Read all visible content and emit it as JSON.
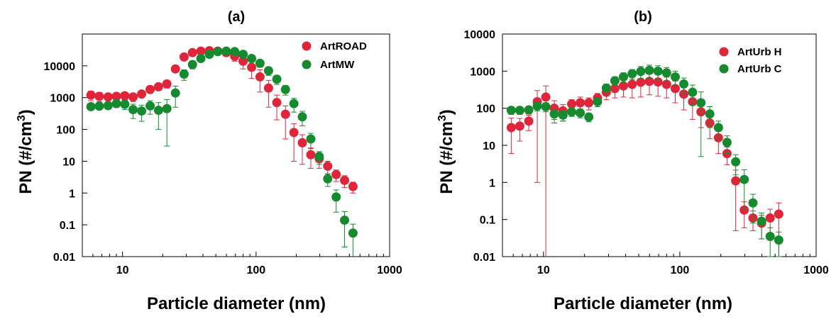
{
  "chart_data": [
    {
      "type": "scatter",
      "title": "(a)",
      "xlabel": "Particle diameter (nm)",
      "ylabel_main": "PN (#/cm",
      "ylabel_sup": "3",
      "ylabel_end": ")",
      "xscale": "log",
      "yscale": "log",
      "xlim": [
        5,
        1000
      ],
      "ylim": [
        0.01,
        100000
      ],
      "xticks": [
        10,
        100,
        1000
      ],
      "xtick_labels": [
        "10",
        "100",
        "1000"
      ],
      "yticks": [
        0.01,
        0.1,
        1,
        10,
        100,
        1000,
        10000
      ],
      "ytick_labels": [
        "0.01",
        "0.1",
        "1",
        "10",
        "100",
        "1000",
        "10000"
      ],
      "grid": false,
      "legend_position": "top-right",
      "series": [
        {
          "name": "ArtROAD",
          "color": "#e0253a",
          "points": [
            {
              "x": 5.8,
              "y": 1200,
              "err": 400
            },
            {
              "x": 6.7,
              "y": 1100,
              "err": 350
            },
            {
              "x": 7.8,
              "y": 1050,
              "err": 300
            },
            {
              "x": 9.0,
              "y": 1100,
              "err": 300
            },
            {
              "x": 10.4,
              "y": 1150,
              "err": 300
            },
            {
              "x": 12.0,
              "y": 1050,
              "err": 300
            },
            {
              "x": 13.9,
              "y": 1300,
              "err": 300
            },
            {
              "x": 16.1,
              "y": 1800,
              "err": 400
            },
            {
              "x": 18.6,
              "y": 2200,
              "err": 500
            },
            {
              "x": 21.5,
              "y": 2700,
              "err": 700
            },
            {
              "x": 24.9,
              "y": 8000,
              "err": 1500
            },
            {
              "x": 28.9,
              "y": 19000,
              "err": 3000
            },
            {
              "x": 33.4,
              "y": 26000,
              "err": 3000
            },
            {
              "x": 38.6,
              "y": 29000,
              "err": 3000
            },
            {
              "x": 44.7,
              "y": 30000,
              "err": 3000
            },
            {
              "x": 51.7,
              "y": 29000,
              "err": 4000
            },
            {
              "x": 59.8,
              "y": 26000,
              "err": 5000
            },
            {
              "x": 69.2,
              "y": 20000,
              "err": 6000
            },
            {
              "x": 80.0,
              "y": 14000,
              "err": 6000
            },
            {
              "x": 92.6,
              "y": 9000,
              "err": 5000
            },
            {
              "x": 107,
              "y": 4500,
              "err": 3000
            },
            {
              "x": 124,
              "y": 2000,
              "err": 1500
            },
            {
              "x": 143,
              "y": 700,
              "err": 500
            },
            {
              "x": 166,
              "y": 300,
              "err": 250
            },
            {
              "x": 192,
              "y": 80,
              "err": 70
            },
            {
              "x": 222,
              "y": 38,
              "err": 30
            },
            {
              "x": 257,
              "y": 16,
              "err": 10
            },
            {
              "x": 297,
              "y": 12,
              "err": 6
            },
            {
              "x": 344,
              "y": 7,
              "err": 3
            },
            {
              "x": 398,
              "y": 3.8,
              "err": 1.5
            },
            {
              "x": 460,
              "y": 2.5,
              "err": 1
            },
            {
              "x": 532,
              "y": 1.6,
              "err": 0.6
            }
          ]
        },
        {
          "name": "ArtMW",
          "color": "#168a2e",
          "points": [
            {
              "x": 5.8,
              "y": 520,
              "err": 100
            },
            {
              "x": 6.7,
              "y": 540,
              "err": 100
            },
            {
              "x": 7.8,
              "y": 560,
              "err": 100
            },
            {
              "x": 9.0,
              "y": 650,
              "err": 150
            },
            {
              "x": 10.4,
              "y": 620,
              "err": 200
            },
            {
              "x": 12.0,
              "y": 420,
              "err": 200
            },
            {
              "x": 13.9,
              "y": 380,
              "err": 200
            },
            {
              "x": 16.1,
              "y": 550,
              "err": 250
            },
            {
              "x": 18.6,
              "y": 400,
              "err": 300
            },
            {
              "x": 21.5,
              "y": 450,
              "err": 420
            },
            {
              "x": 24.9,
              "y": 1400,
              "err": 900
            },
            {
              "x": 28.9,
              "y": 5500,
              "err": 2000
            },
            {
              "x": 33.4,
              "y": 11000,
              "err": 3000
            },
            {
              "x": 38.6,
              "y": 17000,
              "err": 3000
            },
            {
              "x": 44.7,
              "y": 23000,
              "err": 3000
            },
            {
              "x": 51.7,
              "y": 28000,
              "err": 4000
            },
            {
              "x": 59.8,
              "y": 29000,
              "err": 5000
            },
            {
              "x": 69.2,
              "y": 28000,
              "err": 5000
            },
            {
              "x": 80.0,
              "y": 23000,
              "err": 5000
            },
            {
              "x": 92.6,
              "y": 17000,
              "err": 4000
            },
            {
              "x": 107,
              "y": 12000,
              "err": 3000
            },
            {
              "x": 124,
              "y": 7000,
              "err": 2000
            },
            {
              "x": 143,
              "y": 3800,
              "err": 1200
            },
            {
              "x": 166,
              "y": 1800,
              "err": 600
            },
            {
              "x": 192,
              "y": 650,
              "err": 300
            },
            {
              "x": 222,
              "y": 250,
              "err": 120
            },
            {
              "x": 257,
              "y": 50,
              "err": 25
            },
            {
              "x": 297,
              "y": 14,
              "err": 6
            },
            {
              "x": 344,
              "y": 2.8,
              "err": 1.2
            },
            {
              "x": 398,
              "y": 0.75,
              "err": 0.5
            },
            {
              "x": 460,
              "y": 0.14,
              "err": 0.12
            },
            {
              "x": 532,
              "y": 0.055,
              "err": 0.05
            }
          ]
        }
      ]
    },
    {
      "type": "scatter",
      "title": "(b)",
      "xlabel": "Particle diameter (nm)",
      "ylabel_main": "PN (#/cm",
      "ylabel_sup": "3",
      "ylabel_end": ")",
      "xscale": "log",
      "yscale": "log",
      "xlim": [
        5,
        1000
      ],
      "ylim": [
        0.01,
        10000
      ],
      "xticks": [
        10,
        100,
        1000
      ],
      "xtick_labels": [
        "10",
        "100",
        "1000"
      ],
      "yticks": [
        0.01,
        0.1,
        1,
        10,
        100,
        1000,
        10000
      ],
      "ytick_labels": [
        "0.01",
        "0.1",
        "1",
        "10",
        "100",
        "1000",
        "10000"
      ],
      "grid": false,
      "legend_position": "top-right",
      "series": [
        {
          "name": "ArtUrb H",
          "color": "#e0253a",
          "points": [
            {
              "x": 5.8,
              "y": 30,
              "err": 24
            },
            {
              "x": 6.7,
              "y": 33,
              "err": 20
            },
            {
              "x": 7.8,
              "y": 45,
              "err": 20
            },
            {
              "x": 9.0,
              "y": 150,
              "err": 149
            },
            {
              "x": 10.4,
              "y": 200,
              "err": 200
            },
            {
              "x": 12.0,
              "y": 100,
              "err": 60
            },
            {
              "x": 13.9,
              "y": 85,
              "err": 40
            },
            {
              "x": 16.1,
              "y": 130,
              "err": 40
            },
            {
              "x": 18.6,
              "y": 140,
              "err": 60
            },
            {
              "x": 21.5,
              "y": 140,
              "err": 50
            },
            {
              "x": 24.9,
              "y": 190,
              "err": 60
            },
            {
              "x": 28.9,
              "y": 270,
              "err": 100
            },
            {
              "x": 33.4,
              "y": 340,
              "err": 150
            },
            {
              "x": 38.6,
              "y": 400,
              "err": 200
            },
            {
              "x": 44.7,
              "y": 440,
              "err": 250
            },
            {
              "x": 51.7,
              "y": 500,
              "err": 300
            },
            {
              "x": 59.8,
              "y": 530,
              "err": 300
            },
            {
              "x": 69.2,
              "y": 510,
              "err": 300
            },
            {
              "x": 80.0,
              "y": 440,
              "err": 250
            },
            {
              "x": 92.6,
              "y": 340,
              "err": 200
            },
            {
              "x": 107,
              "y": 240,
              "err": 150
            },
            {
              "x": 124,
              "y": 150,
              "err": 100
            },
            {
              "x": 143,
              "y": 80,
              "err": 50
            },
            {
              "x": 166,
              "y": 40,
              "err": 25
            },
            {
              "x": 192,
              "y": 16,
              "err": 10
            },
            {
              "x": 222,
              "y": 6,
              "err": 3
            },
            {
              "x": 257,
              "y": 1.1,
              "err": 1.05
            },
            {
              "x": 297,
              "y": 0.18,
              "err": 0.12
            },
            {
              "x": 344,
              "y": 0.11,
              "err": 0.06
            },
            {
              "x": 398,
              "y": 0.08,
              "err": 0.05
            },
            {
              "x": 460,
              "y": 0.11,
              "err": 0.08
            },
            {
              "x": 532,
              "y": 0.14,
              "err": 0.14
            }
          ]
        },
        {
          "name": "ArtUrb C",
          "color": "#168a2e",
          "points": [
            {
              "x": 5.8,
              "y": 88,
              "err": 20
            },
            {
              "x": 6.7,
              "y": 88,
              "err": 20
            },
            {
              "x": 7.8,
              "y": 90,
              "err": 20
            },
            {
              "x": 9.0,
              "y": 115,
              "err": 30
            },
            {
              "x": 10.4,
              "y": 110,
              "err": 30
            },
            {
              "x": 12.0,
              "y": 70,
              "err": 20
            },
            {
              "x": 13.9,
              "y": 65,
              "err": 20
            },
            {
              "x": 16.1,
              "y": 80,
              "err": 20
            },
            {
              "x": 18.6,
              "y": 75,
              "err": 20
            },
            {
              "x": 21.5,
              "y": 58,
              "err": 15
            },
            {
              "x": 24.9,
              "y": 150,
              "err": 40
            },
            {
              "x": 28.9,
              "y": 350,
              "err": 100
            },
            {
              "x": 33.4,
              "y": 550,
              "err": 150
            },
            {
              "x": 38.6,
              "y": 700,
              "err": 200
            },
            {
              "x": 44.7,
              "y": 850,
              "err": 250
            },
            {
              "x": 51.7,
              "y": 980,
              "err": 350
            },
            {
              "x": 59.8,
              "y": 1050,
              "err": 400
            },
            {
              "x": 69.2,
              "y": 1000,
              "err": 400
            },
            {
              "x": 80.0,
              "y": 900,
              "err": 350
            },
            {
              "x": 92.6,
              "y": 700,
              "err": 300
            },
            {
              "x": 107,
              "y": 450,
              "err": 200
            },
            {
              "x": 124,
              "y": 270,
              "err": 150
            },
            {
              "x": 143,
              "y": 140,
              "err": 135
            },
            {
              "x": 166,
              "y": 70,
              "err": 40
            },
            {
              "x": 192,
              "y": 30,
              "err": 15
            },
            {
              "x": 222,
              "y": 12,
              "err": 6
            },
            {
              "x": 257,
              "y": 3.6,
              "err": 2
            },
            {
              "x": 297,
              "y": 1.2,
              "err": 1
            },
            {
              "x": 344,
              "y": 0.28,
              "err": 0.2
            },
            {
              "x": 398,
              "y": 0.09,
              "err": 0.06
            },
            {
              "x": 460,
              "y": 0.035,
              "err": 0.025
            },
            {
              "x": 532,
              "y": 0.028,
              "err": 0.018
            }
          ]
        }
      ]
    }
  ]
}
